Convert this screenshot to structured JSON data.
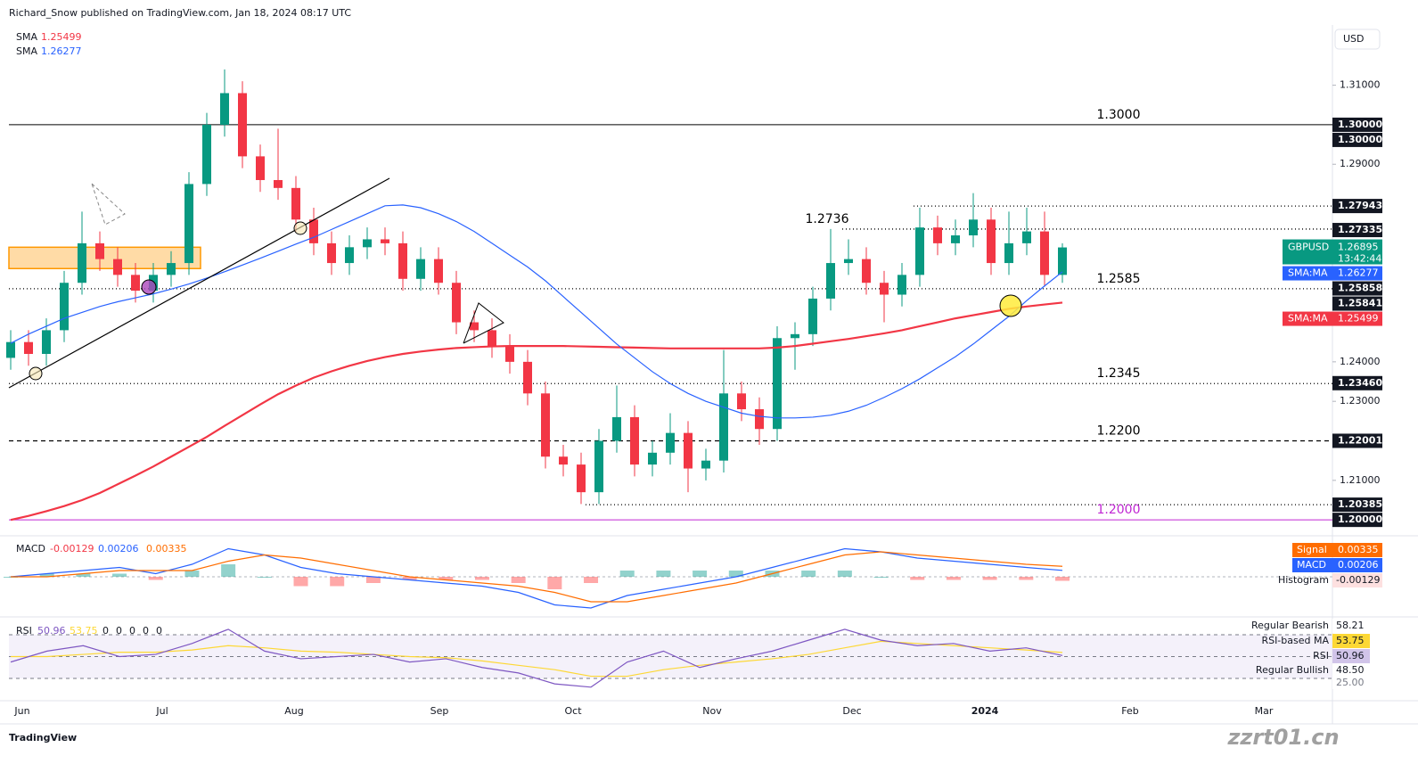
{
  "header": {
    "publisher": "Richard_Snow published on TradingView.com, Jan 18, 2024 08:17 UTC",
    "brand": "TradingView",
    "watermark": "zzrt01.cn"
  },
  "chart_data": [
    {
      "type": "candlestick",
      "symbol": "GBPUSD",
      "currency": "USD",
      "countdown": "13:42:44",
      "up_color": "#089981",
      "down_color": "#f23645",
      "open": [
        1.241,
        1.245,
        1.242,
        1.248,
        1.26,
        1.27,
        1.266,
        1.262,
        1.258,
        1.262,
        1.265,
        1.285,
        1.3,
        1.308,
        1.292,
        1.286,
        1.284,
        1.276,
        1.27,
        1.265,
        1.269,
        1.271,
        1.27,
        1.261,
        1.266,
        1.26,
        1.25,
        1.248,
        1.244,
        1.24,
        1.232,
        1.216,
        1.214,
        1.207,
        1.22,
        1.226,
        1.214,
        1.217,
        1.222,
        1.213,
        1.215,
        1.232,
        1.228,
        1.223,
        1.246,
        1.247,
        1.256,
        1.265,
        1.266,
        1.26,
        1.257,
        1.262,
        1.274,
        1.27,
        1.272,
        1.276,
        1.265,
        1.27,
        1.273,
        1.262
      ],
      "high": [
        1.248,
        1.248,
        1.251,
        1.263,
        1.278,
        1.273,
        1.269,
        1.265,
        1.265,
        1.268,
        1.288,
        1.303,
        1.314,
        1.311,
        1.295,
        1.299,
        1.287,
        1.279,
        1.273,
        1.272,
        1.274,
        1.274,
        1.273,
        1.269,
        1.269,
        1.263,
        1.253,
        1.251,
        1.247,
        1.243,
        1.235,
        1.219,
        1.217,
        1.223,
        1.234,
        1.229,
        1.22,
        1.227,
        1.225,
        1.218,
        1.243,
        1.235,
        1.231,
        1.249,
        1.25,
        1.259,
        1.2736,
        1.271,
        1.269,
        1.263,
        1.265,
        1.279,
        1.277,
        1.276,
        1.2827,
        1.279,
        1.278,
        1.279,
        1.278,
        1.27
      ],
      "low": [
        1.238,
        1.239,
        1.239,
        1.245,
        1.257,
        1.263,
        1.259,
        1.255,
        1.255,
        1.259,
        1.262,
        1.282,
        1.297,
        1.289,
        1.283,
        1.281,
        1.273,
        1.267,
        1.262,
        1.262,
        1.266,
        1.267,
        1.258,
        1.258,
        1.257,
        1.247,
        1.245,
        1.241,
        1.237,
        1.229,
        1.213,
        1.211,
        1.204,
        1.204,
        1.217,
        1.211,
        1.211,
        1.214,
        1.207,
        1.21,
        1.212,
        1.225,
        1.219,
        1.22,
        1.238,
        1.244,
        1.253,
        1.262,
        1.257,
        1.25,
        1.254,
        1.259,
        1.267,
        1.267,
        1.269,
        1.262,
        1.262,
        1.267,
        1.259,
        1.26
      ],
      "close": [
        1.245,
        1.242,
        1.248,
        1.26,
        1.27,
        1.266,
        1.262,
        1.258,
        1.262,
        1.265,
        1.285,
        1.3,
        1.308,
        1.292,
        1.286,
        1.284,
        1.276,
        1.27,
        1.265,
        1.269,
        1.271,
        1.27,
        1.261,
        1.266,
        1.26,
        1.25,
        1.248,
        1.244,
        1.24,
        1.232,
        1.216,
        1.214,
        1.207,
        1.22,
        1.226,
        1.214,
        1.217,
        1.222,
        1.213,
        1.215,
        1.232,
        1.228,
        1.223,
        1.246,
        1.247,
        1.256,
        1.265,
        1.266,
        1.26,
        1.257,
        1.262,
        1.274,
        1.27,
        1.272,
        1.276,
        1.265,
        1.27,
        1.273,
        1.262,
        1.26895
      ],
      "series": [
        {
          "name": "SMA",
          "tag": "SMA:MA",
          "color": "#f23645",
          "values": [
            1.2,
            1.201,
            1.2022,
            1.2035,
            1.205,
            1.2068,
            1.209,
            1.2112,
            1.2135,
            1.216,
            1.2185,
            1.221,
            1.2238,
            1.2265,
            1.2292,
            1.2318,
            1.234,
            1.236,
            1.2376,
            1.239,
            1.2402,
            1.2412,
            1.242,
            1.2426,
            1.2431,
            1.2435,
            1.2437,
            1.2439,
            1.244,
            1.244,
            1.244,
            1.244,
            1.2439,
            1.2438,
            1.2437,
            1.2436,
            1.2435,
            1.2434,
            1.2434,
            1.2434,
            1.2434,
            1.2434,
            1.2434,
            1.2436,
            1.244,
            1.2446,
            1.2452,
            1.2458,
            1.2465,
            1.2472,
            1.248,
            1.249,
            1.25,
            1.251,
            1.2518,
            1.2526,
            1.2534,
            1.254,
            1.2545,
            1.25499
          ]
        },
        {
          "name": "SMA",
          "tag": "SMA:MA",
          "color": "#2962ff",
          "values": [
            1.2447,
            1.247,
            1.249,
            1.251,
            1.2525,
            1.254,
            1.2552,
            1.2562,
            1.2572,
            1.2584,
            1.2597,
            1.2612,
            1.2628,
            1.2645,
            1.2662,
            1.268,
            1.2698,
            1.2715,
            1.2735,
            1.2755,
            1.2775,
            1.2795,
            1.2797,
            1.279,
            1.2775,
            1.2755,
            1.273,
            1.27,
            1.267,
            1.264,
            1.2605,
            1.2565,
            1.2525,
            1.2485,
            1.2445,
            1.241,
            1.2375,
            1.2345,
            1.232,
            1.23,
            1.2285,
            1.227,
            1.2262,
            1.2258,
            1.2258,
            1.226,
            1.2265,
            1.2275,
            1.229,
            1.231,
            1.2332,
            1.2357,
            1.2385,
            1.2413,
            1.2445,
            1.248,
            1.2515,
            1.2555,
            1.2592,
            1.26277
          ]
        }
      ],
      "ylim": [
        1.1962,
        1.3248
      ],
      "yticks": [
        {
          "value": 1.31,
          "label": "1.31000"
        },
        {
          "value": 1.29,
          "label": "1.29000"
        },
        {
          "value": 1.24,
          "label": "1.24000"
        },
        {
          "value": 1.23,
          "label": "1.23000"
        },
        {
          "value": 1.21,
          "label": "1.21000"
        }
      ],
      "x_axis_labels": [
        "Jun",
        "Jul",
        "Aug",
        "Sep",
        "Oct",
        "Nov",
        "Dec",
        "2024",
        "Feb",
        "Mar"
      ],
      "price_tags": [
        {
          "value": 1.3,
          "label": "1.30000"
        },
        {
          "value": 1.3,
          "label": "1.30000"
        },
        1.27943,
        1.27335,
        1.25858,
        1.25841,
        {
          "value": 1.2346,
          "label": "1.23460"
        },
        1.22001,
        1.20385,
        {
          "value": 1.2,
          "label": "1.20000"
        }
      ],
      "levels": [
        {
          "value": 1.3,
          "label": "1.3000",
          "style": "solid",
          "color": "#000000"
        },
        {
          "value": 1.27943,
          "style": "dotted",
          "color": "#000000"
        },
        {
          "value": 1.2736,
          "label": "1.2736",
          "style": "dotted",
          "color": "#000000"
        },
        {
          "value": 1.2585,
          "label": "1.2585",
          "style": "dotted",
          "color": "#000000"
        },
        {
          "value": 1.2345,
          "label": "1.2345",
          "style": "dotted",
          "color": "#000000"
        },
        {
          "value": 1.22,
          "label": "1.2200",
          "style": "dashed",
          "color": "#000000"
        },
        {
          "value": 1.20385,
          "style": "dotted",
          "color": "#000000"
        },
        {
          "value": 1.2,
          "label": "1.2000",
          "style": "solid",
          "color": "#c026d3"
        }
      ],
      "zone": {
        "low": 1.2636,
        "high": 1.269,
        "color": "#ff9800"
      }
    },
    {
      "type": "macd",
      "title": "MACD",
      "ylim": [
        -0.012,
        0.012
      ],
      "up_color": "#26a69a",
      "down_color": "#ff5252",
      "series": [
        {
          "name": "Histogram",
          "values": [
            0,
            0.001,
            0.001,
            0.001,
            -0.001,
            0.002,
            0.004,
            0,
            -0.003,
            -0.003,
            -0.002,
            -0.001,
            -0.001,
            -0.001,
            -0.002,
            -0.004,
            -0.002,
            0.002,
            0.002,
            0.002,
            0.002,
            0.002,
            0.002,
            0.002,
            0,
            -0.001,
            -0.001,
            -0.001,
            -0.001,
            -0.00129
          ]
        },
        {
          "name": "MACD",
          "color": "#2962ff",
          "values": [
            0,
            0.001,
            0.002,
            0.003,
            0.001,
            0.004,
            0.009,
            0.007,
            0.003,
            0.001,
            0,
            -0.001,
            -0.002,
            -0.003,
            -0.005,
            -0.009,
            -0.01,
            -0.006,
            -0.004,
            -0.002,
            0,
            0.003,
            0.006,
            0.009,
            0.008,
            0.006,
            0.005,
            0.004,
            0.003,
            0.00206
          ]
        },
        {
          "name": "Signal",
          "color": "#ff6d00",
          "values": [
            0,
            0,
            0.001,
            0.002,
            0.002,
            0.002,
            0.005,
            0.007,
            0.006,
            0.004,
            0.002,
            0,
            -0.001,
            -0.002,
            -0.003,
            -0.005,
            -0.008,
            -0.008,
            -0.006,
            -0.004,
            -0.002,
            0.001,
            0.004,
            0.007,
            0.008,
            0.007,
            0.006,
            0.005,
            0.004,
            0.00335
          ]
        }
      ]
    },
    {
      "type": "rsi",
      "title": "RSI",
      "ylim": [
        10.4,
        79.8
      ],
      "levels": [
        70,
        50,
        30
      ],
      "band_color": "#ede7f6",
      "legend_flags": [
        "0",
        "0",
        "0",
        "0",
        "0"
      ],
      "series": [
        {
          "name": "RSI",
          "color": "#7e57c2",
          "values": [
            45,
            55,
            60,
            50,
            52,
            62,
            75,
            55,
            48,
            50,
            52,
            45,
            48,
            40,
            35,
            25,
            22,
            45,
            55,
            40,
            48,
            55,
            65,
            75,
            65,
            60,
            62,
            55,
            58,
            50.96
          ]
        },
        {
          "name": "RSI-based MA",
          "color": "#fdd835",
          "values": [
            50,
            50,
            52,
            54,
            54,
            56,
            60,
            58,
            55,
            54,
            52,
            50,
            49,
            46,
            42,
            38,
            32,
            32,
            38,
            42,
            45,
            48,
            52,
            58,
            64,
            62,
            60,
            58,
            56,
            53.75
          ]
        }
      ],
      "divergence_tags": [
        {
          "name": "Regular Bearish",
          "value": 58.21
        },
        {
          "name": "Regular Bullish",
          "value": 48.5,
          "label": "48.50"
        }
      ],
      "bottom_tag": {
        "value": 25,
        "label": "25.00"
      }
    }
  ]
}
